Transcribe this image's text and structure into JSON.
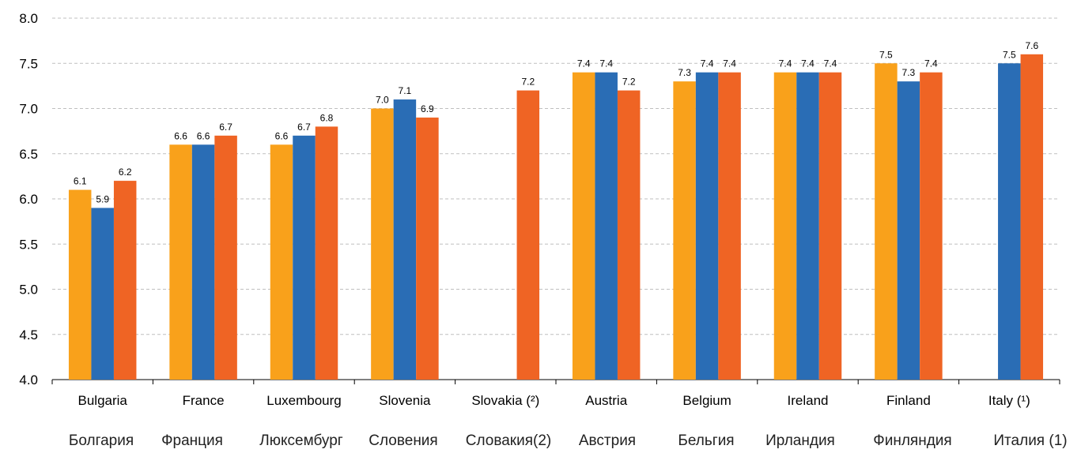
{
  "chart_data": {
    "type": "bar",
    "categories": [
      "Bulgaria",
      "France",
      "Luxembourg",
      "Slovenia",
      "Slovakia (²)",
      "Austria",
      "Belgium",
      "Ireland",
      "Finland",
      "Italy (¹)"
    ],
    "categories_ru": [
      "Болгария",
      "Франция",
      "Люксембург",
      "Словения",
      "Словакия(2)",
      "Австрия",
      "Бельгия",
      "Ирландия",
      "Финляндия",
      "Италия (1)"
    ],
    "series": [
      {
        "color": "#F9A11B",
        "values": [
          6.1,
          6.6,
          6.6,
          7.0,
          null,
          7.4,
          7.3,
          7.4,
          7.5,
          null
        ]
      },
      {
        "color": "#2A6DB5",
        "values": [
          5.9,
          6.6,
          6.7,
          7.1,
          null,
          7.4,
          7.4,
          7.4,
          7.3,
          7.5
        ]
      },
      {
        "color": "#EF6424",
        "values": [
          6.2,
          6.7,
          6.8,
          6.9,
          7.2,
          7.2,
          7.4,
          7.4,
          7.4,
          7.6
        ]
      }
    ],
    "y_ticks": [
      "4.0",
      "4.5",
      "5.0",
      "5.5",
      "6.0",
      "6.5",
      "7.0",
      "7.5",
      "8.0"
    ],
    "ylim": [
      4.0,
      8.0
    ],
    "grid": true,
    "legend": "none",
    "title": "",
    "xlabel": "",
    "ylabel": ""
  }
}
